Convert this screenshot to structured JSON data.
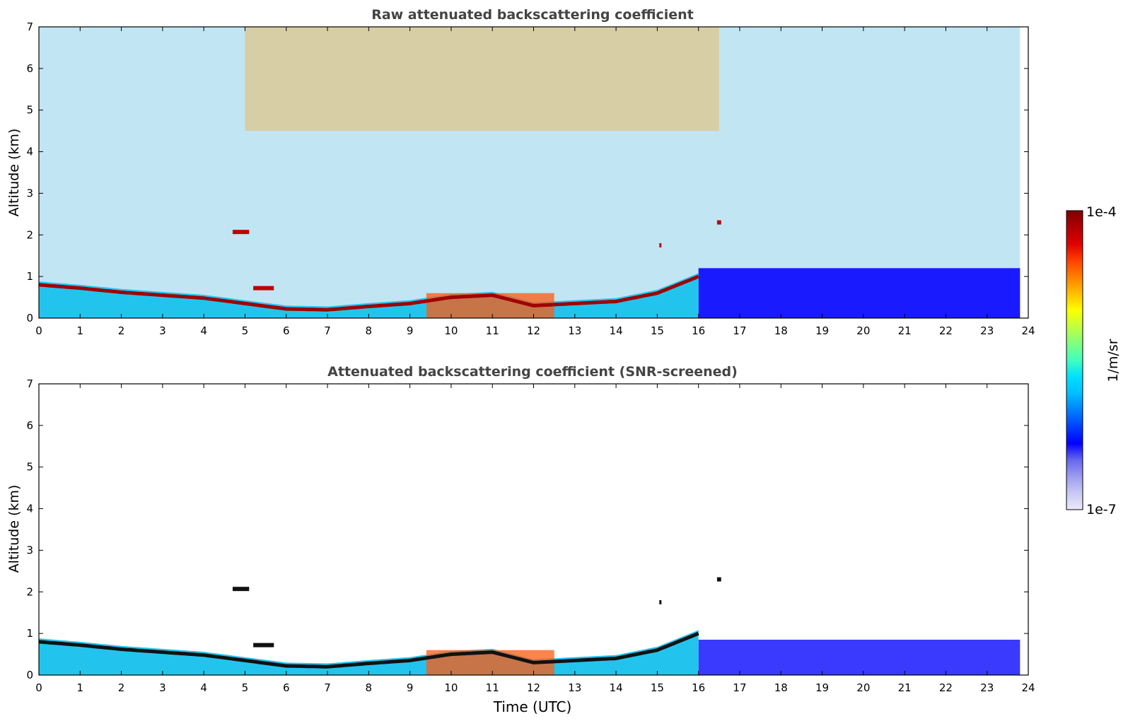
{
  "chart_data": [
    {
      "type": "heatmap",
      "title": "Raw attenuated backscattering coefficient",
      "xlabel": "",
      "ylabel": "Altitude (km)",
      "xlim": [
        0,
        24
      ],
      "ylim": [
        0,
        7
      ],
      "x_ticks": [
        0,
        1,
        2,
        3,
        4,
        5,
        6,
        7,
        8,
        9,
        10,
        11,
        12,
        13,
        14,
        15,
        16,
        17,
        18,
        19,
        20,
        21,
        22,
        23,
        24
      ],
      "y_ticks": [
        0,
        1,
        2,
        3,
        4,
        5,
        6,
        7
      ],
      "layer_top_km": [
        [
          0,
          0.8
        ],
        [
          1,
          0.72
        ],
        [
          2,
          0.62
        ],
        [
          3,
          0.55
        ],
        [
          4,
          0.48
        ],
        [
          5,
          0.35
        ],
        [
          6,
          0.22
        ],
        [
          7,
          0.2
        ],
        [
          8,
          0.28
        ],
        [
          9,
          0.35
        ],
        [
          10,
          0.5
        ],
        [
          11,
          0.55
        ],
        [
          12,
          0.3
        ],
        [
          13,
          0.35
        ],
        [
          14,
          0.4
        ],
        [
          15,
          0.6
        ],
        [
          16,
          1.0
        ],
        [
          16.5,
          1.2
        ],
        [
          17,
          1.3
        ]
      ],
      "features": [
        {
          "x": [
            4.7,
            5.1
          ],
          "y": 2.07
        },
        {
          "x": [
            5.2,
            5.7
          ],
          "y": 0.72
        },
        {
          "x": [
            16.45,
            16.55
          ],
          "y": 2.3
        },
        {
          "x": [
            15.05,
            15.1
          ],
          "y": 1.75
        }
      ]
    },
    {
      "type": "heatmap",
      "title": "Attenuated backscattering coefficient (SNR-screened)",
      "xlabel": "Time (UTC)",
      "ylabel": "Altitude (km)",
      "xlim": [
        0,
        24
      ],
      "ylim": [
        0,
        7
      ],
      "x_ticks": [
        0,
        1,
        2,
        3,
        4,
        5,
        6,
        7,
        8,
        9,
        10,
        11,
        12,
        13,
        14,
        15,
        16,
        17,
        18,
        19,
        20,
        21,
        22,
        23,
        24
      ],
      "y_ticks": [
        0,
        1,
        2,
        3,
        4,
        5,
        6,
        7
      ],
      "layer_top_km": [
        [
          0,
          0.8
        ],
        [
          1,
          0.72
        ],
        [
          2,
          0.62
        ],
        [
          3,
          0.55
        ],
        [
          4,
          0.48
        ],
        [
          5,
          0.35
        ],
        [
          6,
          0.22
        ],
        [
          7,
          0.2
        ],
        [
          8,
          0.28
        ],
        [
          9,
          0.35
        ],
        [
          10,
          0.5
        ],
        [
          11,
          0.55
        ],
        [
          12,
          0.3
        ],
        [
          13,
          0.35
        ],
        [
          14,
          0.4
        ],
        [
          15,
          0.6
        ],
        [
          16,
          1.0
        ],
        [
          16.5,
          1.2
        ],
        [
          17,
          1.3
        ]
      ],
      "features": [
        {
          "x": [
            4.7,
            5.1
          ],
          "y": 2.07
        },
        {
          "x": [
            5.2,
            5.7
          ],
          "y": 0.72
        },
        {
          "x": [
            16.45,
            16.55
          ],
          "y": 2.3
        },
        {
          "x": [
            15.05,
            15.1
          ],
          "y": 1.75
        }
      ]
    }
  ],
  "colorbar": {
    "label": "1/m/sr",
    "max_label": "1e-4",
    "min_label": "1e-7",
    "scale": "log",
    "colors": [
      "#eceaf8",
      "#c8c8f4",
      "#9c9cf0",
      "#6666ee",
      "#0000ff",
      "#0040ff",
      "#0080ff",
      "#00bfff",
      "#00e0ff",
      "#40ffbf",
      "#80ff80",
      "#bfff40",
      "#ffff00",
      "#ffbf00",
      "#ff8000",
      "#ff4000",
      "#e00000",
      "#b00000",
      "#800000"
    ]
  }
}
